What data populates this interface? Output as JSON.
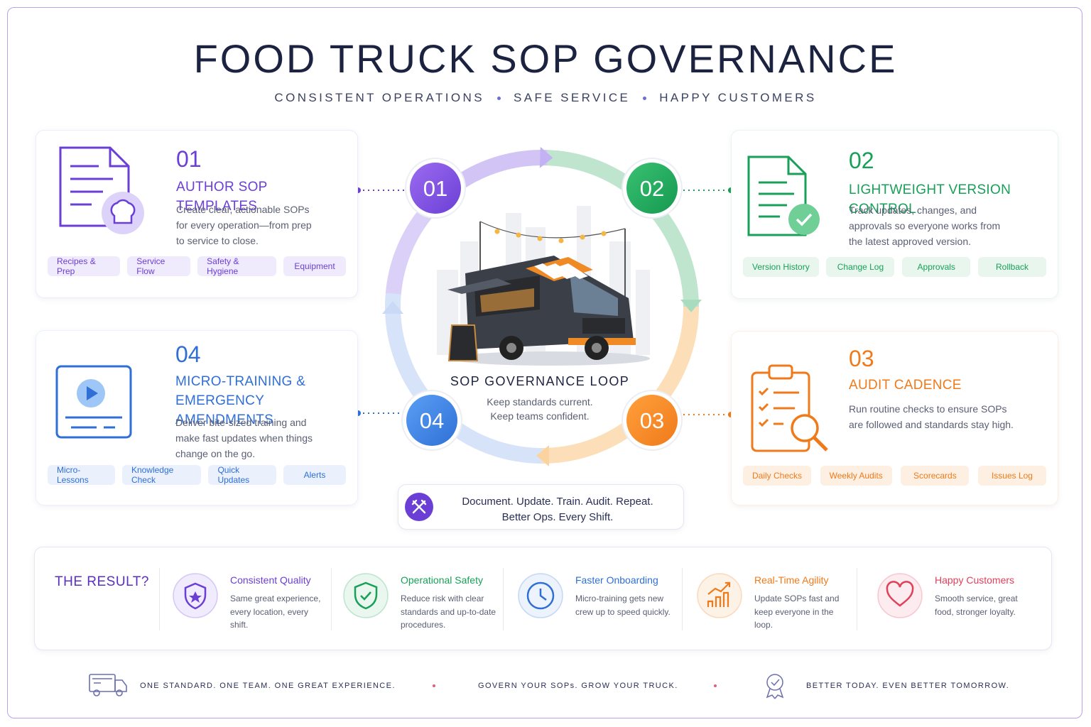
{
  "header": {
    "title": "FOOD TRUCK SOP GOVERNANCE",
    "subtitle": [
      "CONSISTENT OPERATIONS",
      "SAFE SERVICE",
      "HAPPY CUSTOMERS"
    ]
  },
  "steps": [
    {
      "number": "01",
      "title": "AUTHOR SOP TEMPLATES",
      "description": "Create clear, actionable SOPs for every operation—from prep to service to close.",
      "tags": [
        "Recipes & Prep",
        "Service Flow",
        "Safety & Hygiene",
        "Equipment"
      ]
    },
    {
      "number": "02",
      "title": "LIGHTWEIGHT VERSION CONTROL",
      "description": "Track updates, changes, and approvals so everyone works from the latest approved version.",
      "tags": [
        "Version History",
        "Change Log",
        "Approvals",
        "Rollback"
      ]
    },
    {
      "number": "03",
      "title": "AUDIT CADENCE",
      "description": "Run routine checks to ensure SOPs are followed and standards stay high.",
      "tags": [
        "Daily Checks",
        "Weekly Audits",
        "Scorecards",
        "Issues Log"
      ]
    },
    {
      "number": "04",
      "title": "MICRO-TRAINING & EMERGENCY AMENDMENTS",
      "description": "Deliver bite-sized training and make fast updates when things change on the go.",
      "tags": [
        "Micro-Lessons",
        "Knowledge Check",
        "Quick Updates",
        "Alerts"
      ]
    }
  ],
  "center": {
    "title": "SOP GOVERNANCE LOOP",
    "lines": [
      "Keep standards current.",
      "Keep teams confident."
    ]
  },
  "motto": {
    "lines": [
      "Document. Update. Train. Audit. Repeat.",
      "Better Ops. Every Shift."
    ]
  },
  "result": {
    "heading": "THE RESULT?",
    "items": [
      {
        "title": "Consistent Quality",
        "description": "Same great experience, every location, every shift."
      },
      {
        "title": "Operational Safety",
        "description": "Reduce risk with clear standards and up-to-date procedures."
      },
      {
        "title": "Faster Onboarding",
        "description": "Micro-training gets new crew up to speed quickly."
      },
      {
        "title": "Real-Time Agility",
        "description": "Update SOPs fast and keep everyone in the loop."
      },
      {
        "title": "Happy Customers",
        "description": "Smooth service, great food, stronger loyalty."
      }
    ]
  },
  "footer": [
    "ONE STANDARD. ONE TEAM. ONE GREAT EXPERIENCE.",
    "GOVERN YOUR SOPs. GROW YOUR TRUCK.",
    "BETTER TODAY. EVEN BETTER TOMORROW."
  ]
}
